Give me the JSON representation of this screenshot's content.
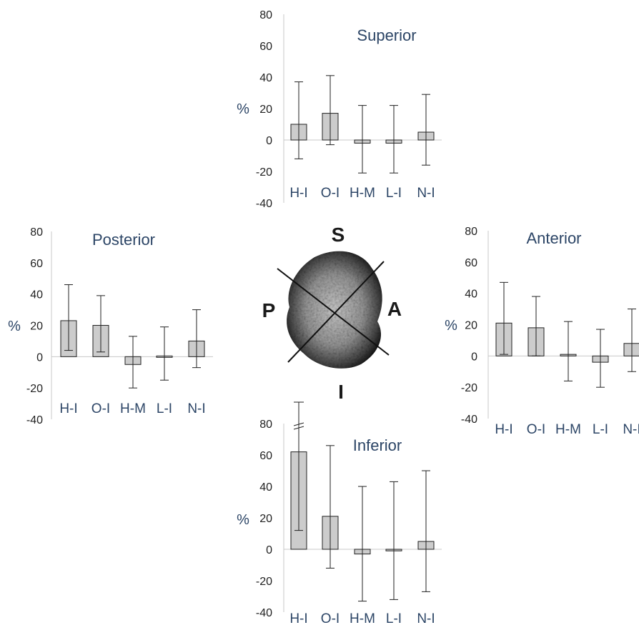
{
  "chart_data": [
    {
      "type": "bar",
      "title": "Superior",
      "ylabel": "%",
      "ylim": [
        -40,
        80
      ],
      "yticks": [
        80,
        60,
        40,
        20,
        0,
        -20,
        -40
      ],
      "categories": [
        "H-I",
        "O-I",
        "H-M",
        "L-I",
        "N-I"
      ],
      "values": [
        10,
        17,
        -2,
        -2,
        5
      ],
      "error_low": [
        -12,
        -3,
        -21,
        -21,
        -16
      ],
      "error_high": [
        37,
        41,
        22,
        22,
        29
      ]
    },
    {
      "type": "bar",
      "title": "Posterior",
      "ylabel": "%",
      "ylim": [
        -40,
        80
      ],
      "yticks": [
        80,
        60,
        40,
        20,
        0,
        -20,
        -40
      ],
      "categories": [
        "H-I",
        "O-I",
        "H-M",
        "L-I",
        "N-I"
      ],
      "values": [
        23,
        20,
        -5,
        0,
        10
      ],
      "error_low": [
        4,
        3,
        -20,
        -15,
        -7
      ],
      "error_high": [
        46,
        39,
        13,
        19,
        30
      ]
    },
    {
      "type": "bar",
      "title": "Anterior",
      "ylabel": "%",
      "ylim": [
        -40,
        80
      ],
      "yticks": [
        80,
        60,
        40,
        20,
        0,
        -20,
        -40
      ],
      "categories": [
        "H-I",
        "O-I",
        "H-M",
        "L-I",
        "N-I"
      ],
      "values": [
        21,
        18,
        1,
        -4,
        8
      ],
      "error_low": [
        1,
        0,
        -16,
        -20,
        -10
      ],
      "error_high": [
        47,
        38,
        22,
        17,
        30
      ]
    },
    {
      "type": "bar",
      "title": "Inferior",
      "ylabel": "%",
      "ylim": [
        -40,
        80
      ],
      "yticks": [
        80,
        60,
        40,
        20,
        0,
        -20,
        -40
      ],
      "categories": [
        "H-I",
        "O-I",
        "H-M",
        "L-I",
        "N-I"
      ],
      "values": [
        62,
        21,
        -3,
        -1,
        5
      ],
      "error_low": [
        12,
        -12,
        -33,
        -32,
        -27
      ],
      "error_high": [
        113,
        66,
        40,
        43,
        50
      ],
      "axis_break_first_bar": true
    }
  ],
  "center_figure": {
    "orientation_labels": [
      "S",
      "A",
      "I",
      "P"
    ]
  }
}
